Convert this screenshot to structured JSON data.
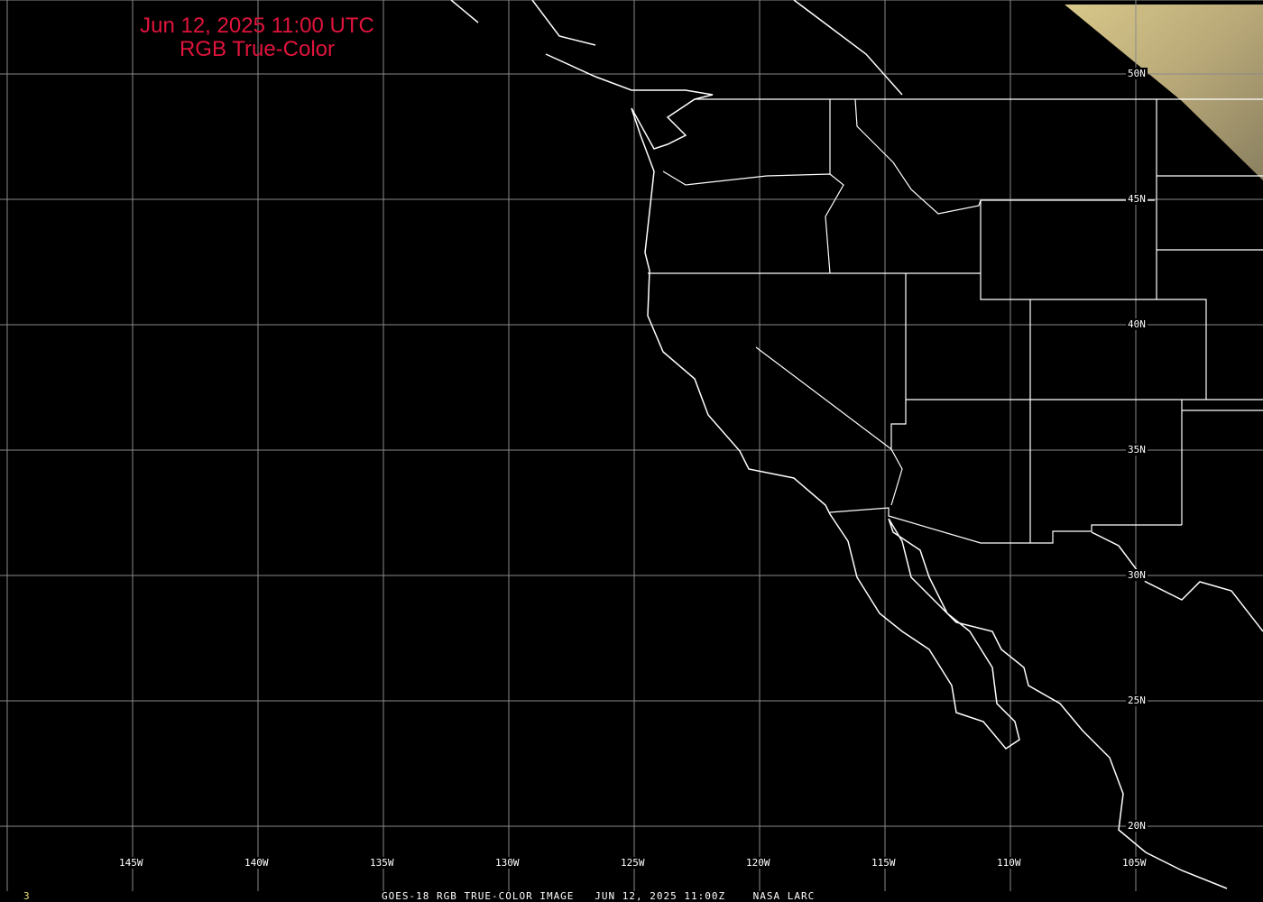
{
  "title": {
    "line1": "Jun 12, 2025 11:00 UTC",
    "line2": "RGB True-Color"
  },
  "footer": {
    "frame": "3",
    "caption": "GOES-18 RGB TRUE-COLOR IMAGE   JUN 12, 2025 11:00Z    NASA LARC"
  },
  "longitude_labels": [
    "145W",
    "140W",
    "135W",
    "130W",
    "125W",
    "120W",
    "115W",
    "110W",
    "105W"
  ],
  "latitude_labels": [
    "50N",
    "45N",
    "40N",
    "35N",
    "30N",
    "25N",
    "20N"
  ],
  "colors": {
    "title": "#e0143c",
    "frame": "#e8e070",
    "grid": "#8a8a8a",
    "borders": "#ffffff",
    "imagery": "#c8b67a"
  }
}
